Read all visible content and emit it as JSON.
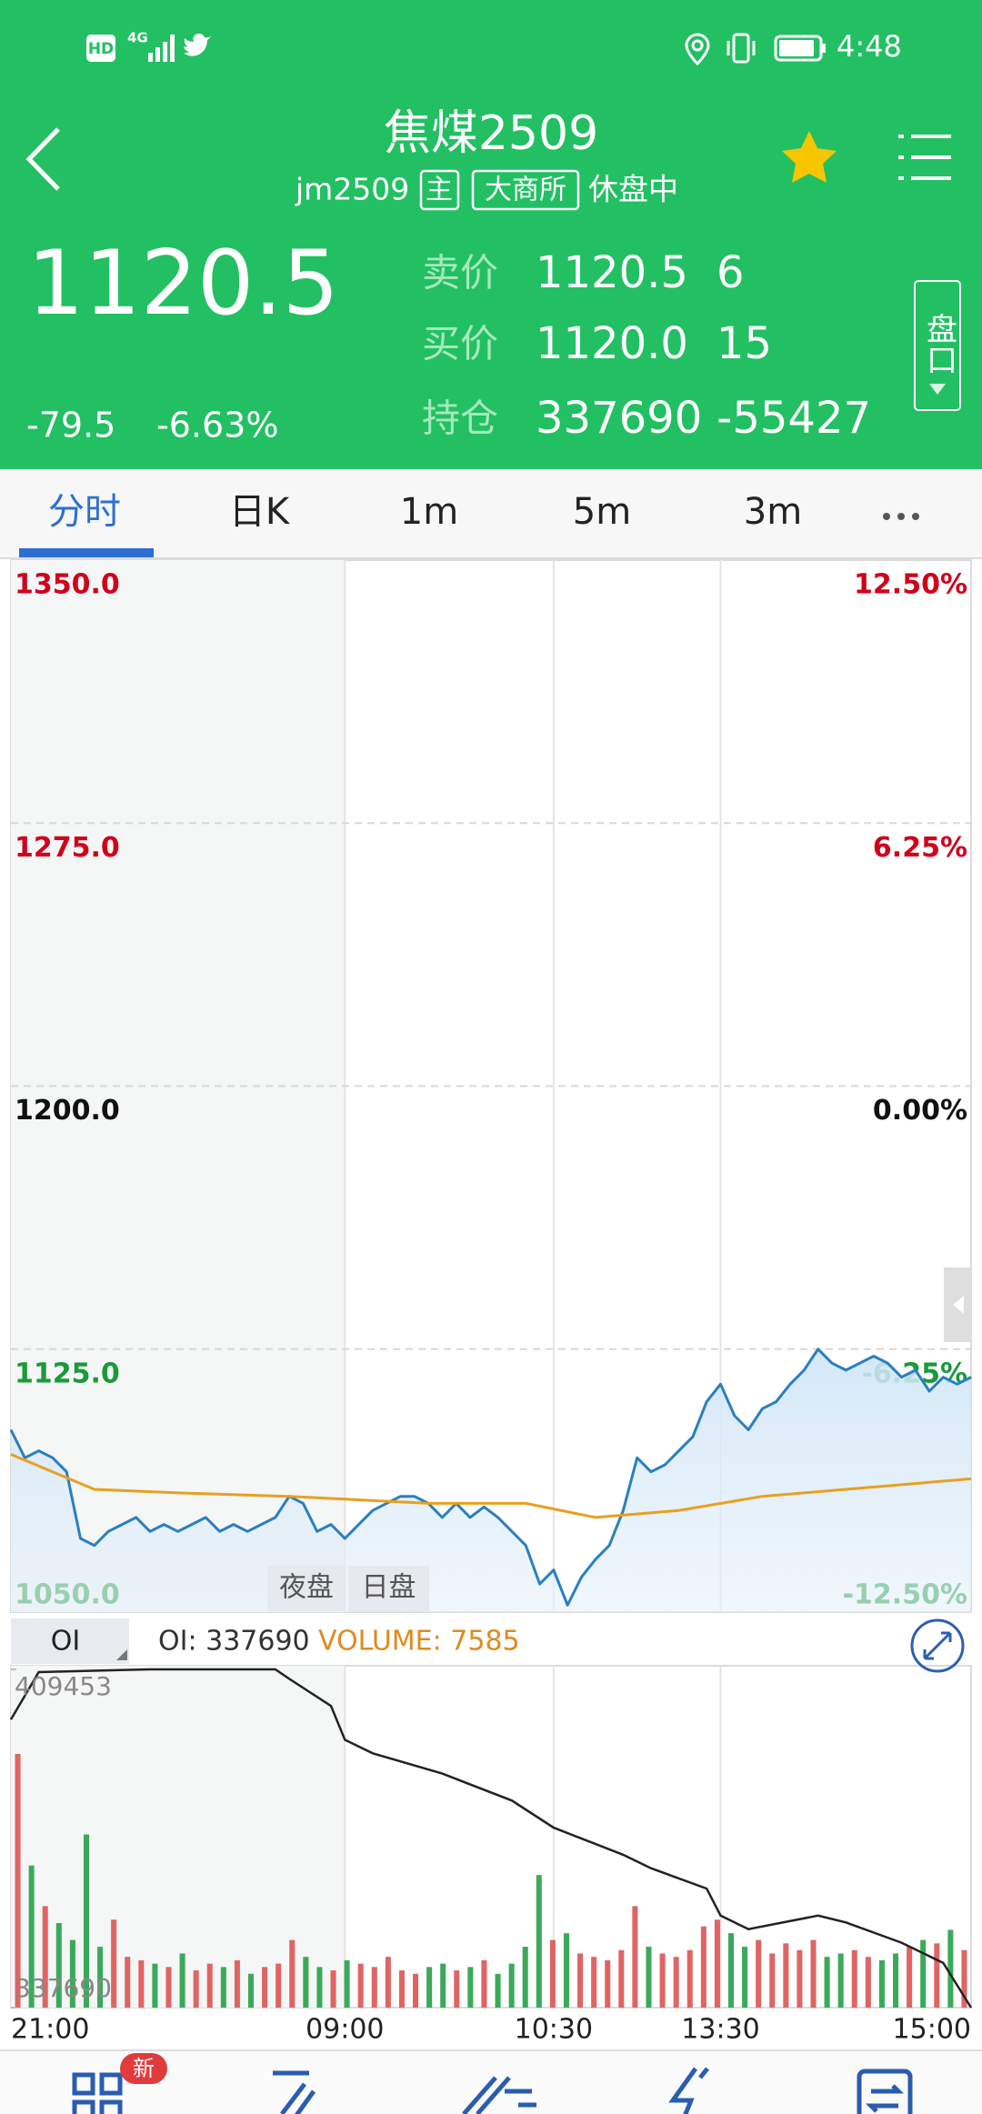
{
  "status_bar": {
    "hd": "HD",
    "network": "4G",
    "time": "4:48"
  },
  "header": {
    "title": "焦煤2509",
    "code": "jm2509",
    "tags": [
      "主",
      "大商所"
    ],
    "status": "休盘中"
  },
  "quote": {
    "price": "1120.5",
    "change": "-79.5",
    "change_pct": "-6.63%",
    "rows": [
      {
        "label": "卖价",
        "price": "1120.5",
        "qty": "6"
      },
      {
        "label": "买价",
        "price": "1120.0",
        "qty": "15"
      },
      {
        "label": "持仓",
        "price": "337690",
        "qty": "-55427"
      }
    ],
    "panel_button": "盘口"
  },
  "tabs": [
    "分时",
    "日K",
    "1m",
    "5m",
    "3m"
  ],
  "chart_data": [
    {
      "type": "line",
      "xlim": [
        0,
        69
      ],
      "xticks": [
        {
          "value": 0,
          "label": "21:00"
        },
        {
          "value": 24,
          "label": "09:00"
        },
        {
          "value": 39,
          "label": "10:30"
        },
        {
          "value": 51,
          "label": "13:30"
        },
        {
          "value": 69,
          "label": "15:00"
        }
      ],
      "ylim": [
        1050,
        1350
      ],
      "yticks": [
        {
          "value": 1350,
          "label": "1350.0"
        },
        {
          "value": 1275,
          "label": "1275.0"
        },
        {
          "value": 1200,
          "label": "1200.0"
        },
        {
          "value": 1125,
          "label": "1125.0"
        },
        {
          "value": 1050,
          "label": "1050.0"
        }
      ],
      "y2lim": [
        -12.5,
        12.5
      ],
      "y2ticks": [
        {
          "value": 12.5,
          "label": "12.50%"
        },
        {
          "value": 6.25,
          "label": "6.25%"
        },
        {
          "value": 0,
          "label": "0.00%"
        },
        {
          "value": -6.25,
          "label": "-6.25%"
        },
        {
          "value": -12.5,
          "label": "-12.50%"
        }
      ],
      "grid": true,
      "session_labels": [
        "夜盘",
        "日盘"
      ],
      "series": [
        {
          "color": "#2a7fc0",
          "area": true,
          "values": [
            1102,
            1094,
            1096,
            1094,
            1090,
            1071,
            1069,
            1073,
            1075,
            1077,
            1073,
            1075,
            1073,
            1075,
            1077,
            1073,
            1075,
            1073,
            1075,
            1077,
            1083,
            1081,
            1073,
            1075,
            1071,
            1075,
            1079,
            1081,
            1083,
            1083,
            1081,
            1077,
            1081,
            1077,
            1080,
            1077,
            1073,
            1069,
            1058,
            1062,
            1052,
            1060,
            1065,
            1069,
            1079,
            1094,
            1090,
            1092,
            1096,
            1100,
            1110,
            1115,
            1106,
            1102,
            1108,
            1110,
            1115,
            1119,
            1125,
            1121,
            1119,
            1121,
            1123,
            1121,
            1117,
            1119,
            1113,
            1117,
            1115,
            1117
          ]
        },
        {
          "color": "#e8a020",
          "x": [
            0,
            3,
            6,
            12,
            20,
            30,
            37,
            42,
            48,
            54,
            60,
            69
          ],
          "values": [
            1095,
            1090,
            1085,
            1084,
            1083,
            1081,
            1081,
            1077,
            1079,
            1083,
            1085,
            1088
          ]
        }
      ]
    },
    {
      "type": "line",
      "xlim": [
        0,
        69
      ],
      "oi_label": "OI: 337690",
      "volume_label": "VOLUME: 7585",
      "ylim": [
        337690,
        409453
      ],
      "yticks": [
        409453,
        337690
      ],
      "series": [
        {
          "name": "OI",
          "color": "#222222",
          "x": [
            0,
            2,
            10,
            19,
            20,
            23,
            24,
            26,
            31,
            36,
            39,
            44,
            46,
            50,
            51,
            53,
            58,
            60,
            64,
            67,
            69
          ],
          "values": [
            398833,
            408880,
            409453,
            409453,
            407444,
            401703,
            394527,
            391656,
            387350,
            381609,
            375868,
            370127,
            367257,
            362951,
            357210,
            354339,
            357210,
            355775,
            351469,
            347163,
            337690
          ]
        }
      ],
      "volume": {
        "ylim": [
          0,
          1000
        ],
        "up_color": "#e06464",
        "down_color": "#3aaa5a",
        "values": [
          750,
          420,
          300,
          250,
          200,
          512,
          180,
          260,
          150,
          140,
          130,
          120,
          160,
          110,
          130,
          120,
          140,
          100,
          120,
          130,
          200,
          150,
          120,
          110,
          140,
          130,
          120,
          150,
          110,
          100,
          120,
          130,
          110,
          120,
          140,
          100,
          130,
          180,
          392,
          200,
          220,
          160,
          150,
          140,
          170,
          300,
          180,
          160,
          150,
          170,
          240,
          260,
          220,
          180,
          200,
          160,
          190,
          170,
          200,
          150,
          160,
          170,
          150,
          140,
          160,
          180,
          200,
          190,
          230,
          170
        ]
      }
    }
  ],
  "nav": {
    "badge": "新"
  }
}
